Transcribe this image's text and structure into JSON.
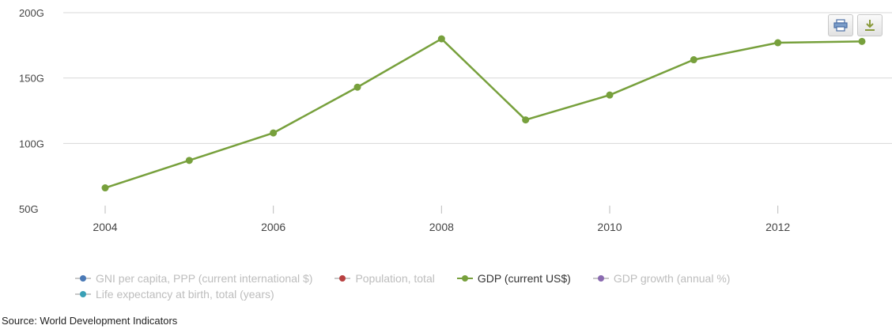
{
  "chart_data": {
    "type": "line",
    "x": [
      2004,
      2005,
      2006,
      2007,
      2008,
      2009,
      2010,
      2011,
      2012,
      2013
    ],
    "xticks": [
      "2004",
      "2006",
      "2008",
      "2010",
      "2012"
    ],
    "yticks": [
      "50G",
      "100G",
      "150G",
      "200G"
    ],
    "ylim": [
      50,
      200
    ],
    "grid": true,
    "legend_position": "bottom",
    "series": [
      {
        "name": "GDP (current US$)",
        "color": "#77a03c",
        "values": [
          66,
          87,
          108,
          143,
          180,
          118,
          137,
          164,
          177,
          178
        ]
      }
    ]
  },
  "legend": [
    {
      "label": "GNI per capita, PPP (current international $)",
      "color": "#4a79b6",
      "active": false
    },
    {
      "label": "Population, total",
      "color": "#b84040",
      "active": false
    },
    {
      "label": "GDP (current US$)",
      "color": "#77a03c",
      "active": true
    },
    {
      "label": "GDP growth (annual %)",
      "color": "#8a6ab0",
      "active": false
    },
    {
      "label": "Life expectancy at birth, total (years)",
      "color": "#3aa0b6",
      "active": false
    }
  ],
  "toolbar": {
    "print_icon": "printer-icon",
    "download_icon": "download-icon"
  },
  "source": {
    "text": "Source: World Development Indicators"
  }
}
